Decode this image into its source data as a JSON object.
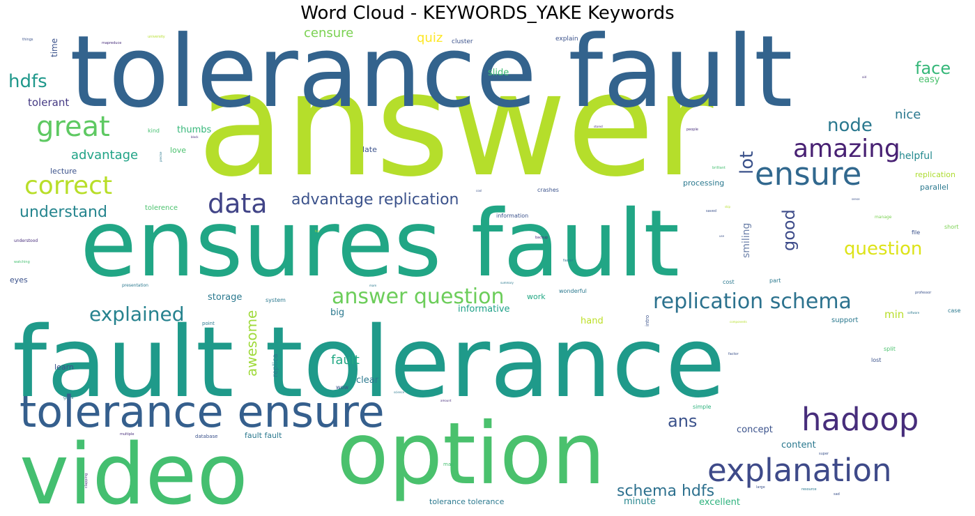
{
  "chart_data": {
    "type": "wordcloud",
    "title": "Word Cloud - KEYWORDS_YAKE Keywords",
    "words": [
      {
        "text": "answer",
        "color": "#b5de2b"
      },
      {
        "text": "tolerance fault",
        "color": "#33638d"
      },
      {
        "text": "ensures fault",
        "color": "#21a685"
      },
      {
        "text": "fault tolerance",
        "color": "#1f9a8a"
      },
      {
        "text": "option",
        "color": "#4ac16d"
      },
      {
        "text": "video",
        "color": "#44bf70"
      },
      {
        "text": "tolerance ensure",
        "color": "#355f8d"
      },
      {
        "text": "explanation",
        "color": "#3e4a89"
      },
      {
        "text": "hadoop",
        "color": "#472d7b"
      },
      {
        "text": "ensure",
        "color": "#31688e"
      },
      {
        "text": "amazing",
        "color": "#482173"
      },
      {
        "text": "great",
        "color": "#5ec962"
      },
      {
        "text": "correct",
        "color": "#b8de29"
      },
      {
        "text": "data",
        "color": "#414487"
      },
      {
        "text": "replication schema",
        "color": "#2c728e"
      },
      {
        "text": "answer question",
        "color": "#6ccd5a"
      },
      {
        "text": "explained",
        "color": "#26828e"
      },
      {
        "text": "hdfs",
        "color": "#1f988b"
      },
      {
        "text": "node",
        "color": "#2a788e"
      },
      {
        "text": "lot",
        "color": "#3b528b"
      },
      {
        "text": "good",
        "color": "#3e4c8a"
      },
      {
        "text": "question",
        "color": "#dde318"
      },
      {
        "text": "advantage replication",
        "color": "#3b528b"
      },
      {
        "text": "understand",
        "color": "#25858e"
      },
      {
        "text": "schema hdfs",
        "color": "#2d708e"
      },
      {
        "text": "ans",
        "color": "#3b528b"
      },
      {
        "text": "face",
        "color": "#35b779"
      },
      {
        "text": "nice",
        "color": "#2a788e"
      },
      {
        "text": "censure",
        "color": "#7ad151"
      },
      {
        "text": "advantage",
        "color": "#20a386"
      },
      {
        "text": "awesome",
        "color": "#9fda3a"
      },
      {
        "text": "fault",
        "color": "#22a884"
      },
      {
        "text": "tolerant",
        "color": "#443983"
      },
      {
        "text": "quiz",
        "color": "#fde725"
      },
      {
        "text": "thumbs",
        "color": "#35b779"
      },
      {
        "text": "helpful",
        "color": "#23898e"
      },
      {
        "text": "smiling",
        "color": "#6b7fa8"
      },
      {
        "text": "informative",
        "color": "#1fa188"
      },
      {
        "text": "storage",
        "color": "#2a788e"
      },
      {
        "text": "clear",
        "color": "#2a788e"
      },
      {
        "text": "min",
        "color": "#b8de29"
      },
      {
        "text": "hand",
        "color": "#bddf26"
      },
      {
        "text": "big",
        "color": "#2a788e"
      },
      {
        "text": "concept",
        "color": "#3b528b"
      },
      {
        "text": "content",
        "color": "#2a788e"
      },
      {
        "text": "minute",
        "color": "#25858e"
      },
      {
        "text": "excellent",
        "color": "#2db27d"
      },
      {
        "text": "fault fault",
        "color": "#2a788e"
      },
      {
        "text": "tolerance tolerance",
        "color": "#2a788e"
      },
      {
        "text": "slide",
        "color": "#3fbc73"
      },
      {
        "text": "easy",
        "color": "#4ac16d"
      },
      {
        "text": "time",
        "color": "#3b528b"
      },
      {
        "text": "lecture",
        "color": "#3b528b"
      },
      {
        "text": "processing",
        "color": "#2a788e"
      },
      {
        "text": "replication",
        "color": "#addc30"
      },
      {
        "text": "parallel",
        "color": "#2a788e"
      },
      {
        "text": "late",
        "color": "#3b528b"
      },
      {
        "text": "love",
        "color": "#4ac16d"
      },
      {
        "text": "tolerence",
        "color": "#4ac16d"
      },
      {
        "text": "eyes",
        "color": "#3b528b"
      },
      {
        "text": "work",
        "color": "#22a884"
      },
      {
        "text": "support",
        "color": "#2a788e"
      },
      {
        "text": "learn",
        "color": "#3b528b"
      },
      {
        "text": "replica",
        "color": "#2a788e"
      },
      {
        "text": "cluster",
        "color": "#3b528b"
      },
      {
        "text": "explain",
        "color": "#3b528b"
      },
      {
        "text": "kind",
        "color": "#44bf70"
      },
      {
        "text": "crashes",
        "color": "#3b528b"
      },
      {
        "text": "information",
        "color": "#3b528b"
      },
      {
        "text": "wonderful",
        "color": "#2a788e"
      },
      {
        "text": "system",
        "color": "#2a788e"
      },
      {
        "text": "cost",
        "color": "#2a788e"
      },
      {
        "text": "part",
        "color": "#2a788e"
      },
      {
        "text": "file",
        "color": "#3b528b"
      },
      {
        "text": "short",
        "color": "#7ad151"
      },
      {
        "text": "split",
        "color": "#4ac16d"
      },
      {
        "text": "lost",
        "color": "#3b528b"
      },
      {
        "text": "simple",
        "color": "#2db27d"
      },
      {
        "text": "point",
        "color": "#2a788e"
      },
      {
        "text": "intro",
        "color": "#3b528b"
      },
      {
        "text": "database",
        "color": "#3b528b"
      },
      {
        "text": "presentation",
        "color": "#2a788e"
      },
      {
        "text": "understood",
        "color": "#472d7b"
      },
      {
        "text": "watching",
        "color": "#44bf70"
      },
      {
        "text": "things",
        "color": "#3b528b"
      },
      {
        "text": "mapreduce",
        "color": "#472d7b"
      },
      {
        "text": "university",
        "color": "#b5de2b"
      },
      {
        "text": "guys",
        "color": "#2a788e"
      },
      {
        "text": "wow",
        "color": "#3b528b"
      },
      {
        "text": "manage",
        "color": "#7ad151"
      },
      {
        "text": "people",
        "color": "#472d7b"
      },
      {
        "text": "brilliant",
        "color": "#44bf70"
      },
      {
        "text": "backup",
        "color": "#472d7b"
      },
      {
        "text": "faster",
        "color": "#2a788e"
      },
      {
        "text": "professor",
        "color": "#3b528b"
      },
      {
        "text": "software",
        "color": "#2a788e"
      },
      {
        "text": "case",
        "color": "#2a788e"
      },
      {
        "text": "map",
        "color": "#44bf70"
      },
      {
        "text": "super",
        "color": "#3b528b"
      },
      {
        "text": "large",
        "color": "#3b528b"
      },
      {
        "text": "resource",
        "color": "#2a788e"
      },
      {
        "text": "clapping",
        "color": "#472d7b"
      },
      {
        "text": "multiple",
        "color": "#472d7b"
      },
      {
        "text": "science",
        "color": "#2a788e"
      },
      {
        "text": "amount",
        "color": "#472d7b"
      },
      {
        "text": "components",
        "color": "#b5de2b"
      },
      {
        "text": "factor",
        "color": "#3b528b"
      },
      {
        "text": "summary",
        "color": "#2a788e"
      },
      {
        "text": "saved",
        "color": "#3b528b"
      },
      {
        "text": "cool",
        "color": "#3b528b"
      },
      {
        "text": "stored",
        "color": "#472d7b"
      },
      {
        "text": "block",
        "color": "#472d7b"
      },
      {
        "text": "precise",
        "color": "#2a788e"
      },
      {
        "text": "sense",
        "color": "#3b528b"
      },
      {
        "text": "skip",
        "color": "#b5de2b"
      },
      {
        "text": "fun",
        "color": "#b5de2b"
      },
      {
        "text": "use",
        "color": "#3b528b"
      },
      {
        "text": "aid",
        "color": "#472d7b"
      },
      {
        "text": "mam",
        "color": "#2a788e"
      },
      {
        "text": "sad",
        "color": "#3b528b"
      }
    ]
  }
}
